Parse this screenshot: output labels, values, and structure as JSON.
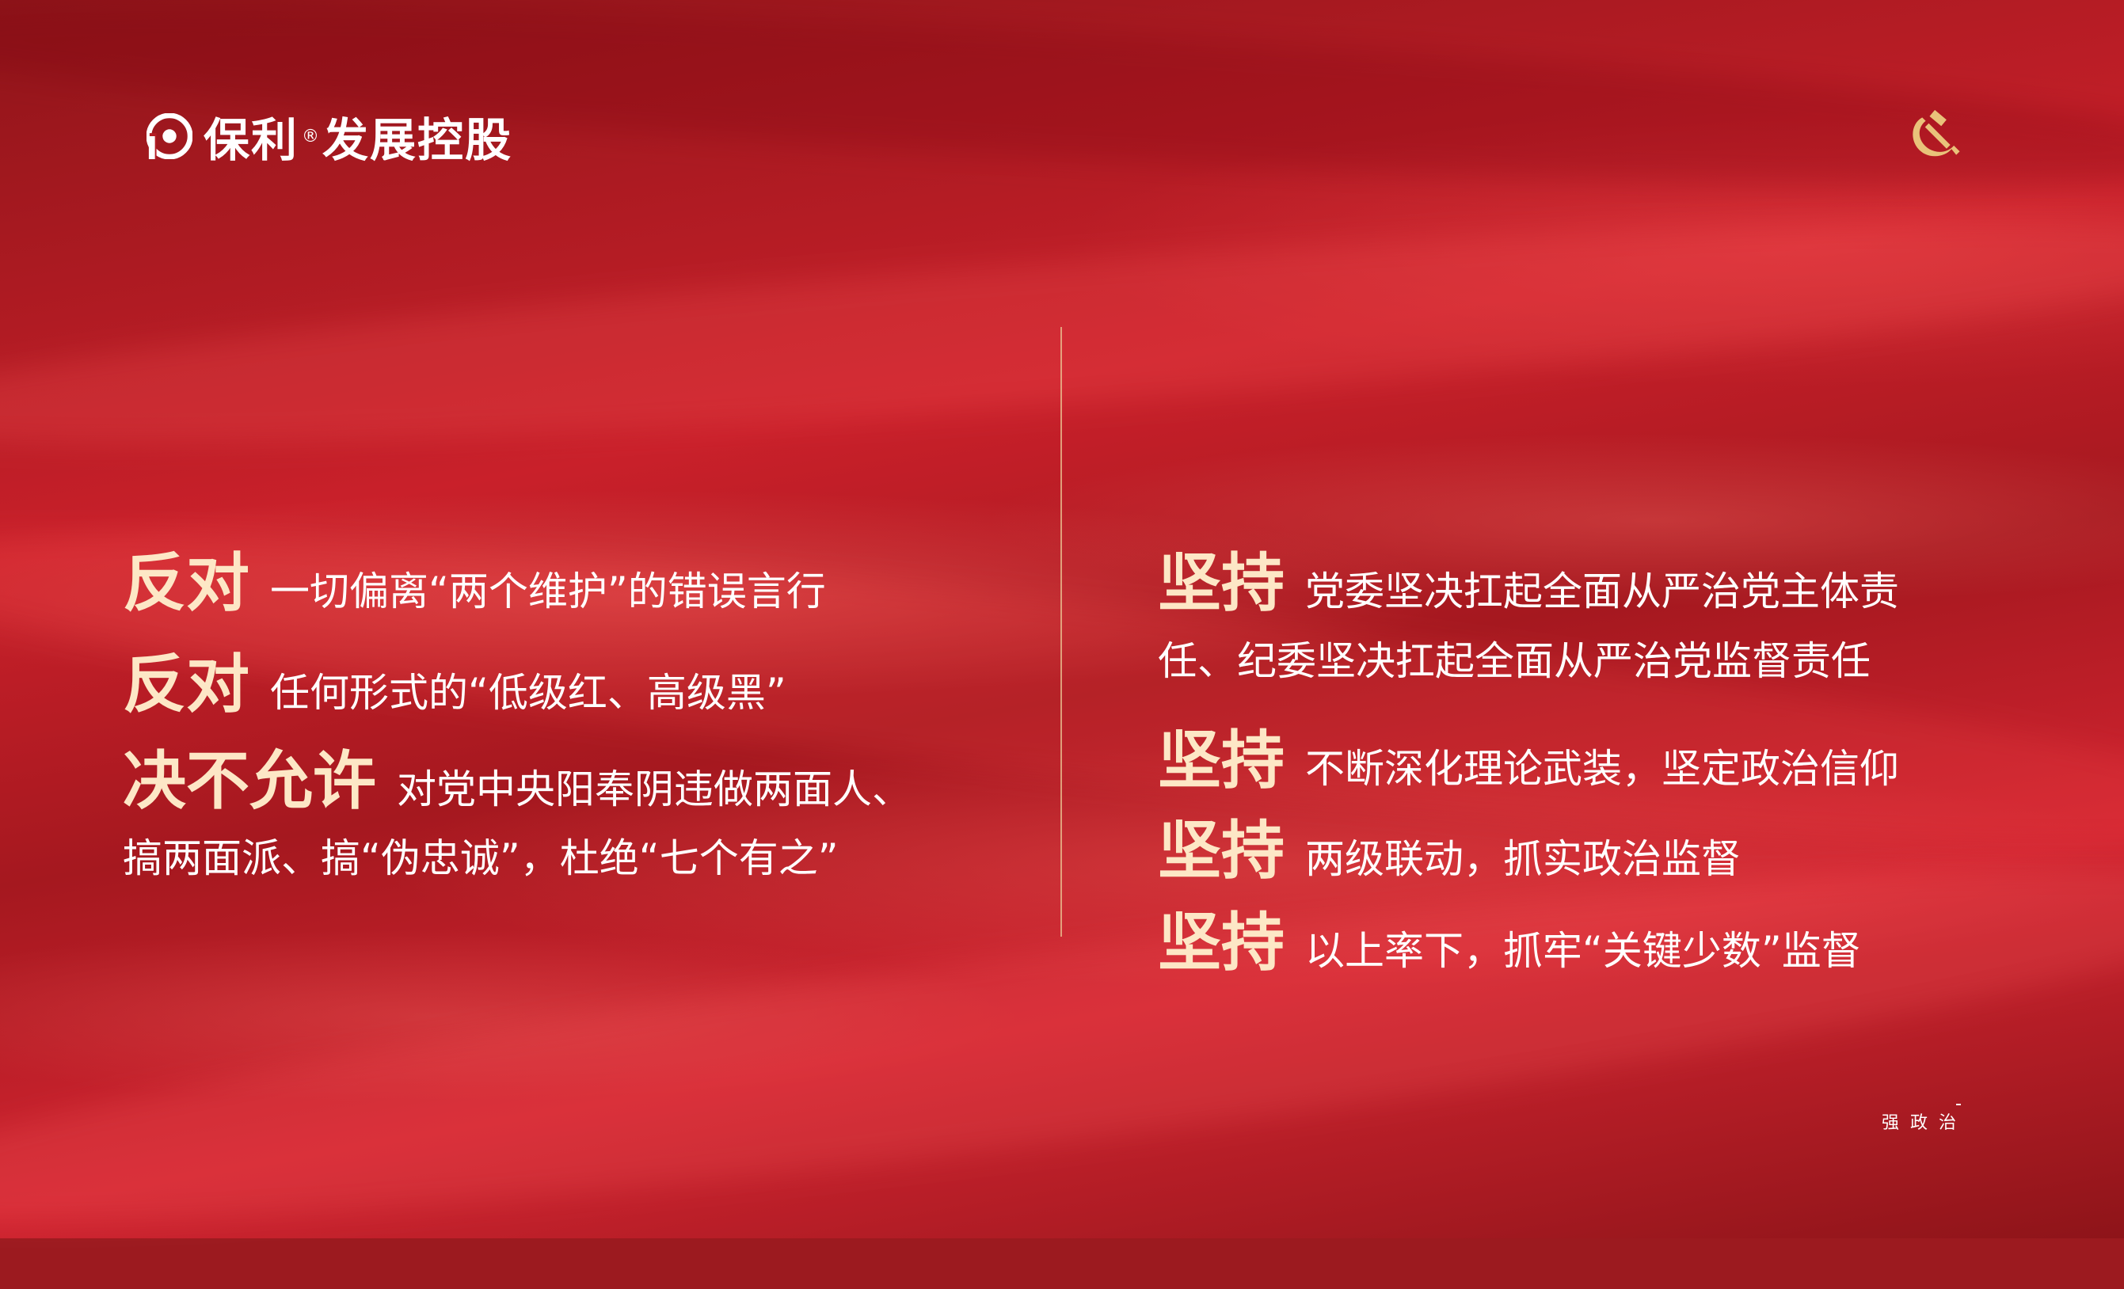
{
  "header": {
    "logo_text_pre": "保利",
    "logo_reg": "®",
    "logo_text_post": "发展控股",
    "emblem": "hammer-sickle-icon"
  },
  "left": {
    "items": [
      {
        "keyword": "反对",
        "text": "一切偏离“两个维护”的错误言行"
      },
      {
        "keyword": "反对",
        "text": "任何形式的“低级红、高级黑”"
      },
      {
        "keyword": "决不允许",
        "text": "对党中央阳奉阴违做两面人、"
      }
    ],
    "continuation": "搞两面派、搞“伪忠诚”，杜绝“七个有之”"
  },
  "right": {
    "items": [
      {
        "keyword": "坚持",
        "text": "党委坚决扛起全面从严治党主体责"
      },
      {
        "keyword": "坚持",
        "text": "不断深化理论武装，坚定政治信仰"
      },
      {
        "keyword": "坚持",
        "text": "两级联动，抓实政治监督"
      },
      {
        "keyword": "坚持",
        "text": "以上率下，抓牢“关键少数”监督"
      }
    ],
    "continuation": "任、纪委坚决扛起全面从严治党监督责任"
  },
  "footer": {
    "tag": "强政治"
  },
  "colors": {
    "background": "#b51c24",
    "keyword": "#fde7c6",
    "text": "#ffffff",
    "divider": "#ebc896",
    "emblem": "#e9c27a"
  }
}
